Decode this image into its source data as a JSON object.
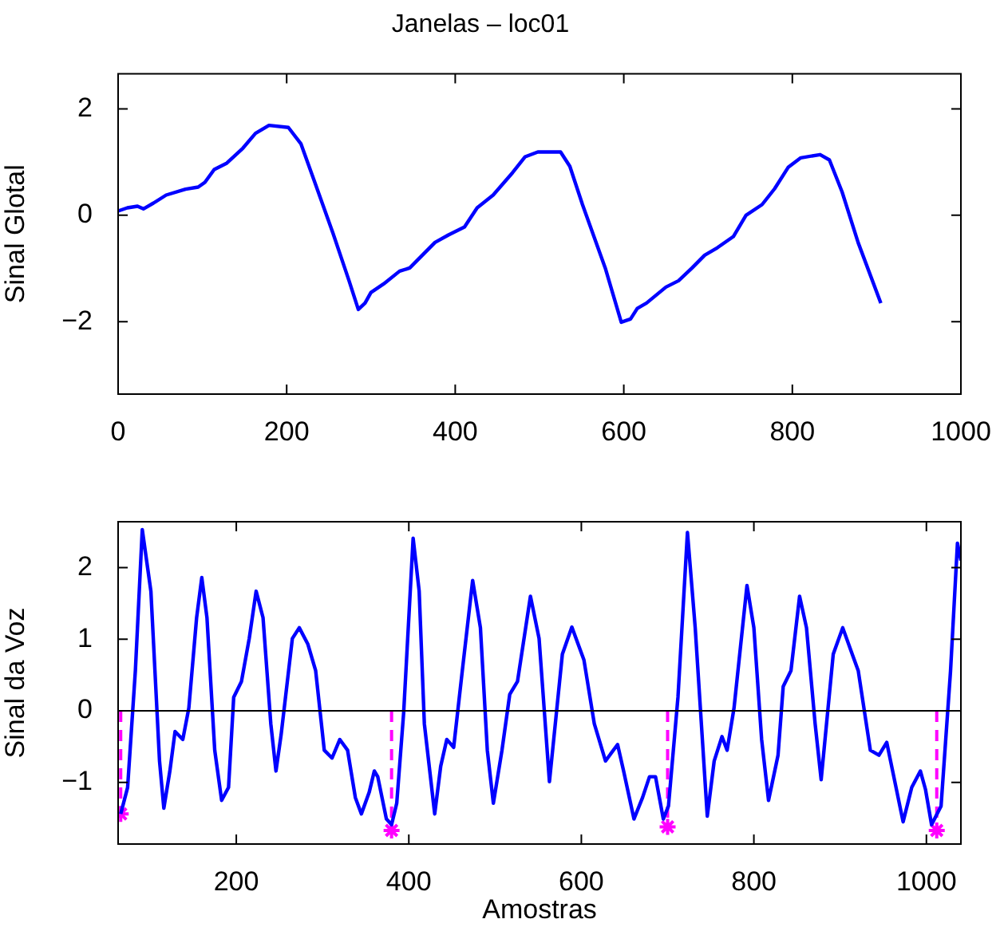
{
  "chart_data": [
    {
      "type": "line",
      "title": "Janelas – loc01",
      "ylabel": "Sinal Glotal",
      "xlim": [
        0,
        1000
      ],
      "ylim": [
        -3.36,
        2.66
      ],
      "xticks": [
        0,
        200,
        400,
        600,
        800,
        1000
      ],
      "yticks": [
        -2,
        0,
        2
      ],
      "series": [
        {
          "color": "#0000ff",
          "x": [
            0,
            11,
            23,
            30,
            42,
            57,
            80,
            95,
            103,
            114,
            129,
            148,
            163,
            179,
            202,
            217,
            232,
            255,
            274,
            285,
            293,
            300,
            315,
            334,
            346,
            361,
            376,
            392,
            411,
            426,
            445,
            468,
            483,
            498,
            525,
            536,
            551,
            578,
            597,
            608,
            616,
            627,
            650,
            665,
            681,
            696,
            711,
            730,
            745,
            764,
            779,
            795,
            810,
            833,
            844,
            859,
            878,
            905
          ],
          "values": [
            0.08,
            0.14,
            0.17,
            0.12,
            0.23,
            0.38,
            0.49,
            0.53,
            0.62,
            0.86,
            0.98,
            1.26,
            1.54,
            1.69,
            1.65,
            1.34,
            0.68,
            -0.34,
            -1.23,
            -1.77,
            -1.65,
            -1.45,
            -1.29,
            -1.05,
            -0.99,
            -0.75,
            -0.51,
            -0.37,
            -0.22,
            0.14,
            0.38,
            0.8,
            1.1,
            1.19,
            1.19,
            0.92,
            0.2,
            -0.99,
            -2.01,
            -1.95,
            -1.75,
            -1.65,
            -1.35,
            -1.23,
            -0.99,
            -0.75,
            -0.61,
            -0.4,
            0.0,
            0.2,
            0.5,
            0.9,
            1.08,
            1.14,
            1.04,
            0.44,
            -0.51,
            -1.65
          ]
        }
      ]
    },
    {
      "type": "line",
      "xlabel": "Amostras",
      "ylabel": "Sinal da Voz",
      "xlim": [
        63,
        1040
      ],
      "ylim": [
        -1.86,
        2.64
      ],
      "xticks": [
        200,
        400,
        600,
        800,
        1000
      ],
      "yticks": [
        -1,
        0,
        1,
        2
      ],
      "ref_lines": [
        {
          "axis": "y",
          "value": 0,
          "color": "#000000"
        }
      ],
      "series": [
        {
          "color": "#0000ff",
          "x": [
            66,
            74,
            83,
            91,
            101,
            111,
            116,
            123,
            129,
            138,
            145,
            154,
            160,
            166,
            175,
            183,
            191,
            197,
            206,
            215,
            223,
            231,
            240,
            246,
            252,
            265,
            273,
            283,
            292,
            302,
            311,
            320,
            329,
            338,
            345,
            354,
            360,
            364,
            374,
            380,
            386,
            394,
            405,
            412,
            418,
            430,
            437,
            444,
            452,
            462,
            474,
            483,
            491,
            498,
            508,
            517,
            526,
            541,
            551,
            563,
            578,
            589,
            603,
            615,
            628,
            642,
            649,
            661,
            671,
            679,
            686,
            695,
            701,
            712,
            723,
            732,
            746,
            754,
            763,
            769,
            777,
            792,
            800,
            809,
            817,
            828,
            834,
            843,
            853,
            861,
            871,
            878,
            892,
            903,
            914,
            921,
            935,
            945,
            954,
            966,
            973,
            983,
            993,
            999,
            1006,
            1017,
            1028,
            1036,
            1040
          ],
          "values": [
            -1.44,
            -1.07,
            0.56,
            2.53,
            1.67,
            -0.7,
            -1.36,
            -0.84,
            -0.29,
            -0.4,
            0.04,
            1.3,
            1.86,
            1.3,
            -0.55,
            -1.25,
            -1.07,
            0.19,
            0.41,
            1.01,
            1.67,
            1.3,
            -0.18,
            -0.84,
            -0.33,
            1.01,
            1.16,
            0.93,
            0.56,
            -0.55,
            -0.66,
            -0.4,
            -0.55,
            -1.21,
            -1.44,
            -1.14,
            -0.84,
            -0.92,
            -1.51,
            -1.59,
            -1.29,
            -0.03,
            2.41,
            1.67,
            -0.18,
            -1.44,
            -0.77,
            -0.4,
            -0.51,
            0.56,
            1.82,
            1.16,
            -0.55,
            -1.29,
            -0.55,
            0.23,
            0.41,
            1.6,
            1.01,
            -0.99,
            0.79,
            1.17,
            0.71,
            -0.18,
            -0.7,
            -0.47,
            -0.84,
            -1.51,
            -1.21,
            -0.92,
            -0.92,
            -1.51,
            -1.33,
            0.19,
            2.49,
            1.16,
            -1.47,
            -0.7,
            -0.36,
            -0.55,
            0.04,
            1.75,
            1.16,
            -0.4,
            -1.25,
            -0.62,
            0.34,
            0.56,
            1.6,
            1.16,
            -0.18,
            -0.96,
            0.79,
            1.16,
            0.79,
            0.56,
            -0.55,
            -0.62,
            -0.44,
            -1.14,
            -1.55,
            -1.07,
            -0.84,
            -1.1,
            -1.59,
            -1.33,
            0.56,
            2.34,
            2.1
          ]
        },
        {
          "type": "lollipop",
          "color": "#ff00ff",
          "marker": "cross",
          "line_style": "dashed",
          "x": [
            66,
            380,
            700,
            1012
          ],
          "values": [
            -1.44,
            -1.67,
            -1.62,
            -1.67
          ]
        }
      ]
    }
  ]
}
